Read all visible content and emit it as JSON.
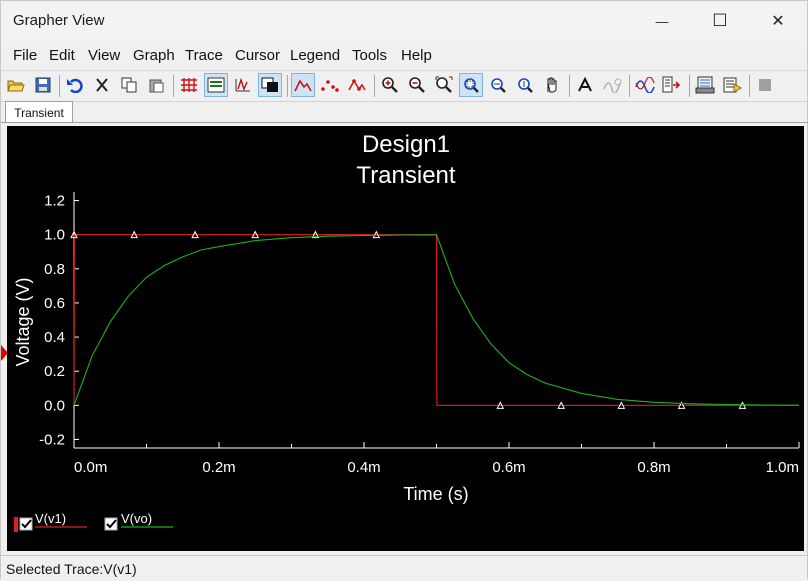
{
  "window": {
    "title": "Grapher View",
    "minimize_glyph": "—",
    "maximize_glyph": "☐",
    "close_glyph": "✕"
  },
  "menu": [
    "File",
    "Edit",
    "View",
    "Graph",
    "Trace",
    "Cursor",
    "Legend",
    "Tools",
    "Help"
  ],
  "toolbar": {
    "icons": [
      "open-icon",
      "save-icon",
      "undo-icon",
      "cut-icon",
      "copy-icon",
      "paste-icon",
      "grid-icon",
      "legend-icon",
      "overlay-traces-icon",
      "reverse-colors-icon",
      "show-cursors-icon",
      "select-marks-icon",
      "mark-points-icon",
      "zoom-in-icon",
      "zoom-out-icon",
      "zoom-fit-icon",
      "zoom-area-icon",
      "zoom-x-icon",
      "zoom-y-icon",
      "pan-icon",
      "text-icon",
      "clear-icon",
      "add-trace-icon",
      "export-icon",
      "print-preview-icon",
      "print-icon",
      "stop-icon"
    ]
  },
  "tabs": [
    "Transient"
  ],
  "chart_data": {
    "type": "line",
    "title": "Design1",
    "subtitle": "Transient",
    "xlabel": "Time (s)",
    "ylabel": "Voltage (V)",
    "xlim": [
      0,
      1.0
    ],
    "ylim": [
      -0.25,
      1.25
    ],
    "x_ticks": [
      0,
      0.2,
      0.4,
      0.6,
      0.8,
      1.0
    ],
    "x_tick_labels": [
      "0.0m",
      "0.2m",
      "0.4m",
      "0.6m",
      "0.8m",
      "1.0m"
    ],
    "y_ticks": [
      -0.2,
      0.0,
      0.2,
      0.4,
      0.6,
      0.8,
      1.0,
      1.2
    ],
    "y_tick_labels": [
      "-0.2",
      "0.0",
      "0.2",
      "0.4",
      "0.6",
      "0.8",
      "1.0",
      "1.2"
    ],
    "background": "#000000",
    "axis_color": "#ffffff",
    "grid": false,
    "legend_placement": "bottom-left",
    "series": [
      {
        "name": "V(v1)",
        "color": "#e02020",
        "x": [
          0,
          0.0005,
          0.5,
          0.5005,
          1.0
        ],
        "y": [
          0,
          1.0,
          1.0,
          0.0,
          0.0
        ],
        "markers_x": [
          0.0,
          0.083,
          0.167,
          0.25,
          0.333,
          0.417,
          0.5,
          0.583,
          0.667,
          0.75,
          0.833,
          0.917
        ]
      },
      {
        "name": "V(vo)",
        "color": "#1fb11f",
        "x": [
          0,
          0.025,
          0.05,
          0.075,
          0.1,
          0.125,
          0.15,
          0.175,
          0.2,
          0.25,
          0.3,
          0.35,
          0.4,
          0.45,
          0.5,
          0.525,
          0.55,
          0.575,
          0.6,
          0.625,
          0.65,
          0.7,
          0.75,
          0.8,
          0.85,
          0.9,
          0.95,
          1.0
        ],
        "y": [
          0,
          0.29,
          0.49,
          0.64,
          0.75,
          0.82,
          0.87,
          0.91,
          0.93,
          0.965,
          0.982,
          0.991,
          0.995,
          0.998,
          0.999,
          0.71,
          0.51,
          0.36,
          0.25,
          0.18,
          0.13,
          0.07,
          0.035,
          0.018,
          0.009,
          0.005,
          0.002,
          0.001
        ]
      }
    ]
  },
  "legend": [
    {
      "label": "V(v1)",
      "checked": true,
      "color": "#e02020"
    },
    {
      "label": "V(vo)",
      "checked": true,
      "color": "#1fb11f"
    }
  ],
  "status": "Selected Trace:V(v1)"
}
